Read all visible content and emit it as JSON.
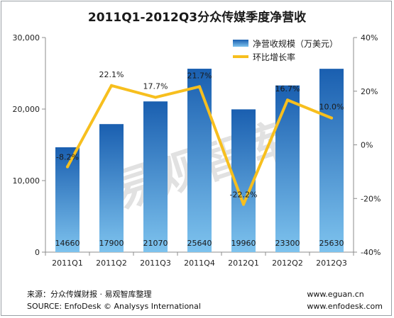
{
  "chart_data": {
    "type": "bar",
    "title": "2011Q1-2012Q3分众传媒季度净营收",
    "categories": [
      "2011Q1",
      "2011Q2",
      "2011Q3",
      "2011Q4",
      "2012Q1",
      "2012Q2",
      "2012Q3"
    ],
    "series": [
      {
        "name": "净营收规模（万美元）",
        "type": "bar",
        "axis": "left",
        "values": [
          14660,
          17900,
          21070,
          25640,
          19960,
          23300,
          25630
        ],
        "labels": [
          "14660",
          "17900",
          "21070",
          "25640",
          "19960",
          "23300",
          "25630"
        ]
      },
      {
        "name": "环比增长率",
        "type": "line",
        "axis": "right",
        "values": [
          -8.2,
          22.1,
          17.7,
          21.7,
          -22.2,
          16.7,
          10.0
        ],
        "labels": [
          "-8.2%",
          "22.1%",
          "17.7%",
          "21.7%",
          "-22.2%",
          "16.7%",
          "10.0%"
        ]
      }
    ],
    "ylim_left": [
      0,
      30000
    ],
    "yticks_left": [
      "0",
      "10,000",
      "20,000",
      "30,000"
    ],
    "ylim_right": [
      -40,
      40
    ],
    "yticks_right": [
      "-40%",
      "-20%",
      "0%",
      "20%",
      "40%"
    ],
    "legend_position": "top-right",
    "grid": false,
    "colors": {
      "bar_top": "#1a5fb0",
      "bar_bottom": "#7ec3ee",
      "line": "#f7bf1e",
      "watermark": "#c8c8c8"
    }
  },
  "watermark": "易观智库",
  "footer": {
    "source_cn": "来源：分众传媒财报 · 易观智库整理",
    "source_en": "SOURCE:  EnfoDesk © Analysys International",
    "site1": "www.eguan.cn",
    "site2": "www.enfodesk.com"
  }
}
